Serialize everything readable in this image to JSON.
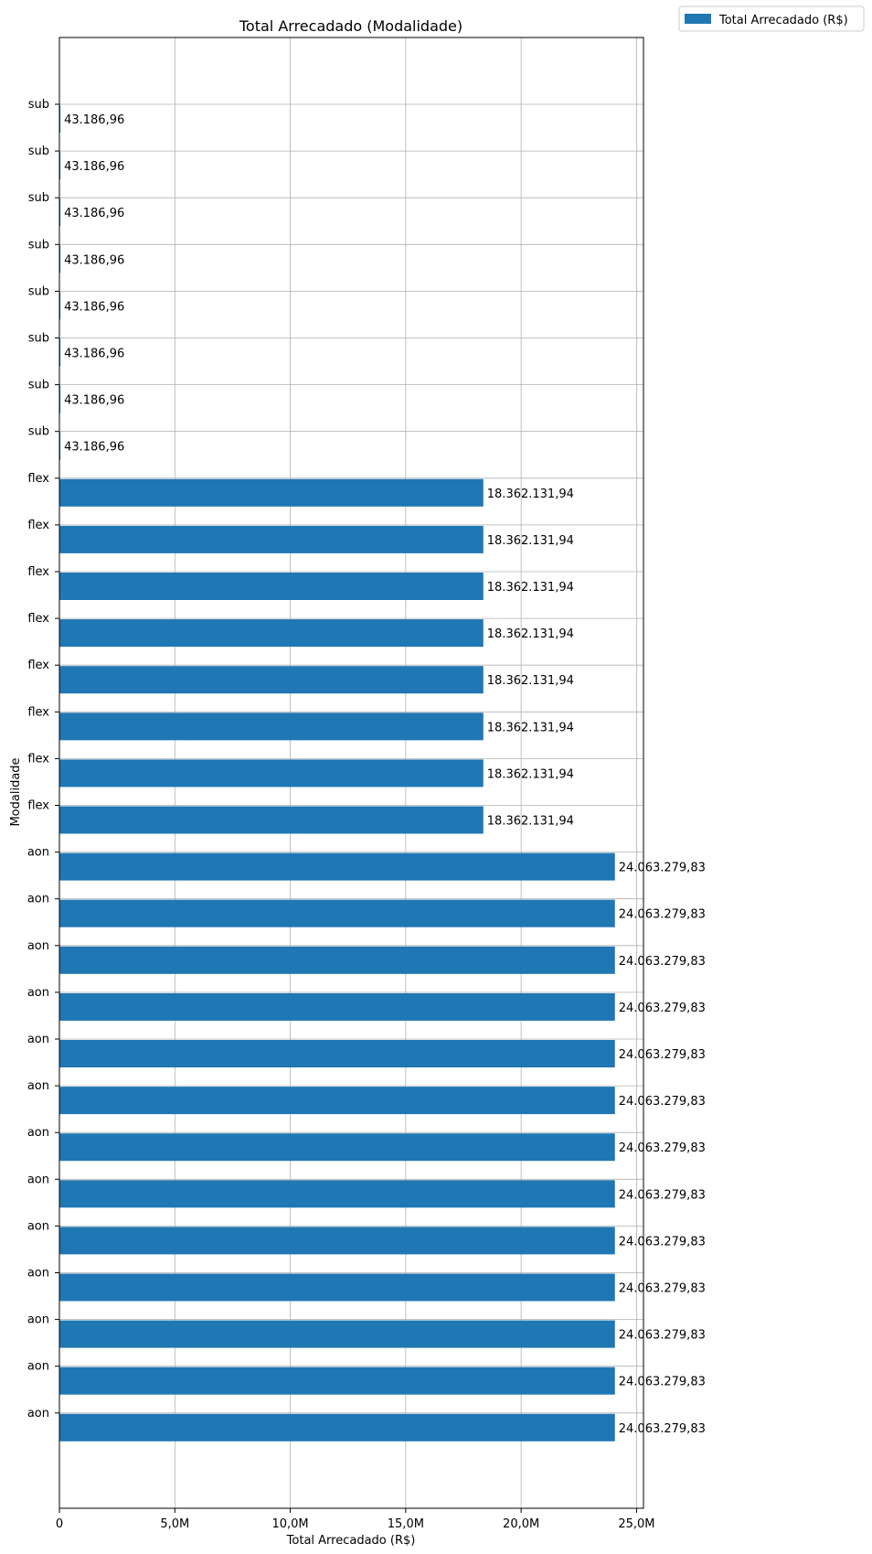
{
  "chart_data": {
    "type": "bar",
    "orientation": "horizontal",
    "title": "Total Arrecadado (Modalidade)",
    "xlabel": "Total Arrecadado (R$)",
    "ylabel": "Modalidade",
    "xlim": [
      0,
      25300000
    ],
    "xticks": [
      0,
      5000000,
      10000000,
      15000000,
      20000000,
      25000000
    ],
    "xtick_labels": [
      "0",
      "5,0M",
      "10,0M",
      "15,0M",
      "20,0M",
      "25,0M"
    ],
    "grid": true,
    "legend": {
      "position": "top-right-outside",
      "entries": [
        "Total Arrecadado (R$)"
      ]
    },
    "series": [
      {
        "name": "Total Arrecadado (R$)",
        "color": "#1f77b4",
        "categories": [
          "sub",
          "sub",
          "sub",
          "sub",
          "sub",
          "sub",
          "sub",
          "sub",
          "flex",
          "flex",
          "flex",
          "flex",
          "flex",
          "flex",
          "flex",
          "flex",
          "aon",
          "aon",
          "aon",
          "aon",
          "aon",
          "aon",
          "aon",
          "aon",
          "aon",
          "aon",
          "aon",
          "aon",
          "aon"
        ],
        "values": [
          43186.96,
          43186.96,
          43186.96,
          43186.96,
          43186.96,
          43186.96,
          43186.96,
          43186.96,
          18362131.94,
          18362131.94,
          18362131.94,
          18362131.94,
          18362131.94,
          18362131.94,
          18362131.94,
          18362131.94,
          24063279.83,
          24063279.83,
          24063279.83,
          24063279.83,
          24063279.83,
          24063279.83,
          24063279.83,
          24063279.83,
          24063279.83,
          24063279.83,
          24063279.83,
          24063279.83,
          24063279.83
        ],
        "labels": [
          "43.186,96",
          "43.186,96",
          "43.186,96",
          "43.186,96",
          "43.186,96",
          "43.186,96",
          "43.186,96",
          "43.186,96",
          "18.362.131,94",
          "18.362.131,94",
          "18.362.131,94",
          "18.362.131,94",
          "18.362.131,94",
          "18.362.131,94",
          "18.362.131,94",
          "18.362.131,94",
          "24.063.279,83",
          "24.063.279,83",
          "24.063.279,83",
          "24.063.279,83",
          "24.063.279,83",
          "24.063.279,83",
          "24.063.279,83",
          "24.063.279,83",
          "24.063.279,83",
          "24.063.279,83",
          "24.063.279,83",
          "24.063.279,83",
          "24.063.279,83"
        ]
      }
    ]
  }
}
